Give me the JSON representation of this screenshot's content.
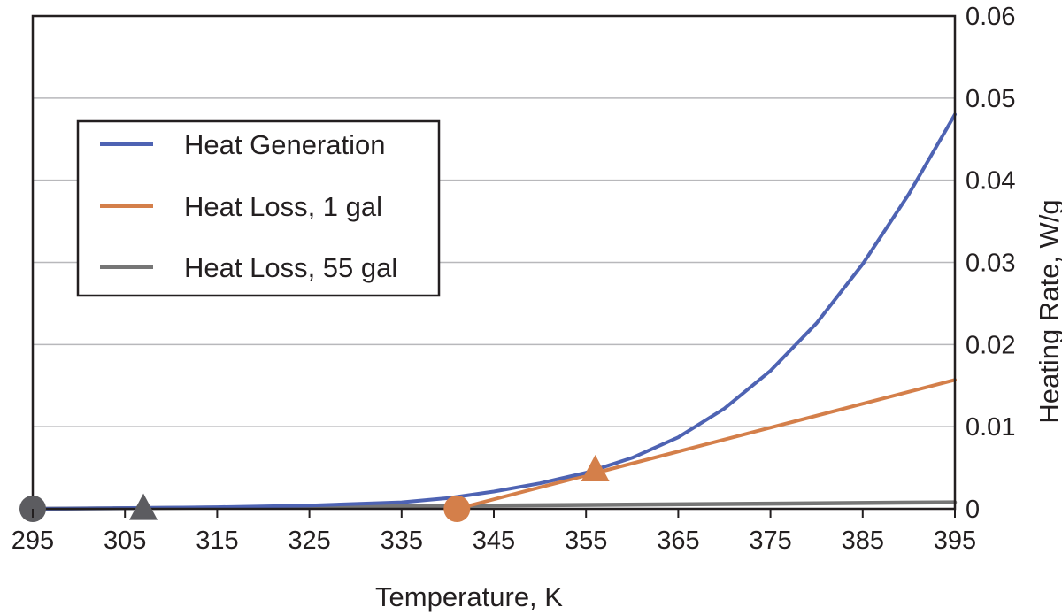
{
  "chart_data": {
    "type": "line",
    "xlabel": "Temperature, K",
    "ylabel": "Heating Rate, W/g",
    "xlim": [
      295,
      395
    ],
    "ylim": [
      0,
      0.06
    ],
    "x_ticks": [
      295,
      305,
      315,
      325,
      335,
      345,
      355,
      365,
      375,
      385,
      395
    ],
    "y_ticks": [
      {
        "value": 0,
        "label": "0"
      },
      {
        "value": 0.01,
        "label": "0.01"
      },
      {
        "value": 0.02,
        "label": "0.02"
      },
      {
        "value": 0.03,
        "label": "0.03"
      },
      {
        "value": 0.04,
        "label": "0.04"
      },
      {
        "value": 0.05,
        "label": "0.05"
      },
      {
        "value": 0.06,
        "label": "0.06"
      }
    ],
    "grid": "horizontal",
    "legend_position": "upper-left",
    "series": [
      {
        "name": "Heat Generation",
        "color": "#4e63b3",
        "x": [
          295,
          305,
          315,
          325,
          335,
          340,
          345,
          350,
          355,
          360,
          365,
          370,
          375,
          380,
          385,
          390,
          395
        ],
        "y": [
          0.0,
          0.0001,
          0.0002,
          0.0004,
          0.0008,
          0.0013,
          0.0021,
          0.0031,
          0.0044,
          0.0062,
          0.0087,
          0.0122,
          0.0168,
          0.0226,
          0.0298,
          0.0383,
          0.048
        ]
      },
      {
        "name": "Heat Loss, 1 gal",
        "color": "#d47f4a",
        "x": [
          341,
          395
        ],
        "y": [
          0.0,
          0.0157
        ]
      },
      {
        "name": "Heat Loss, 55 gal",
        "color": "#767676",
        "x": [
          295,
          395
        ],
        "y": [
          0.0,
          0.0008
        ]
      }
    ],
    "markers": [
      {
        "shape": "circle",
        "color": "#5c5c60",
        "x": 295,
        "y": 0.0
      },
      {
        "shape": "triangle",
        "color": "#5c5c60",
        "x": 307,
        "y": 0.0001
      },
      {
        "shape": "circle",
        "color": "#d47f4a",
        "x": 341,
        "y": 0.0
      },
      {
        "shape": "triangle",
        "color": "#d47f4a",
        "x": 356,
        "y": 0.0048
      }
    ]
  }
}
